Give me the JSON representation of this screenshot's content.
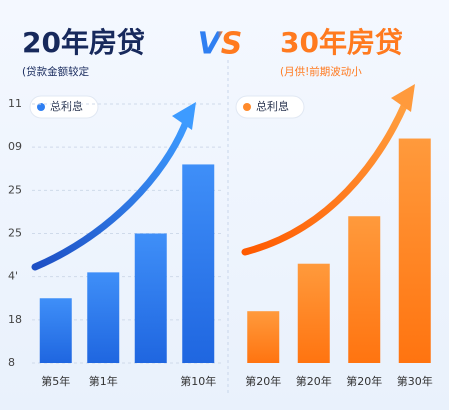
{
  "header": {
    "vs": "VS"
  },
  "chart_data": [
    {
      "type": "bar",
      "title": "20年房贷",
      "subtitle": "(贷款金额较定",
      "categories": [
        "第5年",
        "第1年",
        null,
        "第10年"
      ],
      "series": [
        {
          "name": "总利息",
          "color": "#2f7ff2",
          "values": [
            1.5,
            2.1,
            3.0,
            4.6
          ]
        }
      ],
      "ylim": [
        0,
        6
      ],
      "yticks": [
        {
          "value": 0,
          "label": "8"
        },
        {
          "value": 1,
          "label": "18"
        },
        {
          "value": 2,
          "label": "4'"
        },
        {
          "value": 3,
          "label": "25"
        },
        {
          "value": 4,
          "label": "25"
        },
        {
          "value": 5,
          "label": "09"
        },
        {
          "value": 6,
          "label": "11"
        }
      ],
      "grid": true
    },
    {
      "type": "bar",
      "title": "30年房贷",
      "subtitle": "(月供!前期波动小",
      "categories": [
        "第20年",
        "第20年",
        "第20年",
        "第30年"
      ],
      "series": [
        {
          "name": "总利息",
          "color": "#ff8a2b",
          "values": [
            1.2,
            2.3,
            3.4,
            5.2
          ]
        }
      ],
      "ylim": [
        0,
        6
      ]
    }
  ]
}
